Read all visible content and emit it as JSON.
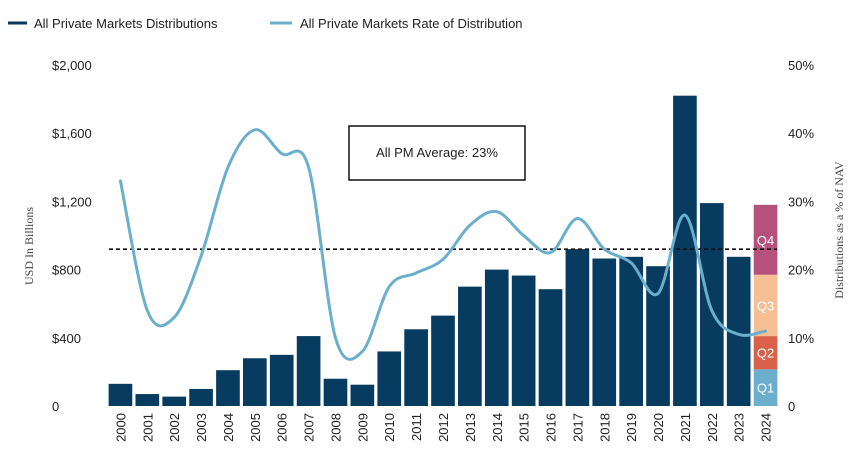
{
  "chart_data": {
    "type": "bar",
    "categories": [
      "2000",
      "2001",
      "2002",
      "2003",
      "2004",
      "2005",
      "2006",
      "2007",
      "2008",
      "2009",
      "2010",
      "2011",
      "2012",
      "2013",
      "2014",
      "2015",
      "2016",
      "2017",
      "2018",
      "2019",
      "2020",
      "2021",
      "2022",
      "2023",
      "2024"
    ],
    "series": [
      {
        "name": "All Private Markets Distributions",
        "type": "bar",
        "axis": "left",
        "color": "#073b5f",
        "values": [
          130,
          70,
          55,
          100,
          210,
          280,
          300,
          410,
          160,
          125,
          320,
          450,
          530,
          700,
          800,
          765,
          685,
          920,
          865,
          875,
          820,
          1820,
          1190,
          875,
          null
        ]
      },
      {
        "name": "All Private Markets Rate of Distribution",
        "type": "line",
        "axis": "right",
        "color": "#6bafcd",
        "values": [
          33,
          14,
          13,
          22,
          35,
          40.5,
          37,
          35,
          10,
          8,
          17.5,
          19.5,
          21.5,
          26.5,
          28.5,
          25,
          22.5,
          27.5,
          23,
          21,
          16.5,
          28,
          14,
          10.5,
          11
        ]
      }
    ],
    "stacked_2024": [
      {
        "label": "Q1",
        "value": 215,
        "color": "#6bafcd"
      },
      {
        "label": "Q2",
        "value": 195,
        "color": "#d9614c"
      },
      {
        "label": "Q3",
        "value": 360,
        "color": "#f6bf93"
      },
      {
        "label": "Q4",
        "value": 410,
        "color": "#b5517c"
      }
    ],
    "average": {
      "value": 23,
      "axis": "right",
      "label": "All PM Average: 23%"
    },
    "y_left": {
      "label": "USD In Billions",
      "ylim": [
        0,
        2000
      ],
      "ticks": [
        0,
        400,
        800,
        1200,
        1600,
        2000
      ],
      "tick_labels": [
        "0",
        "$400",
        "$800",
        "$1,200",
        "$1,600",
        "$2,000"
      ]
    },
    "y_right": {
      "label": "Distributions as a % of NAV",
      "ylim": [
        0,
        50
      ],
      "ticks": [
        0,
        10,
        20,
        30,
        40,
        50
      ],
      "tick_labels": [
        "0",
        "10%",
        "20%",
        "30%",
        "40%",
        "50%"
      ]
    },
    "legend": [
      {
        "label": "All Private Markets Distributions",
        "color": "#073b5f"
      },
      {
        "label": "All Private Markets Rate of Distribution",
        "color": "#6bafcd"
      }
    ],
    "legend_position": "top-left",
    "grid": false
  }
}
